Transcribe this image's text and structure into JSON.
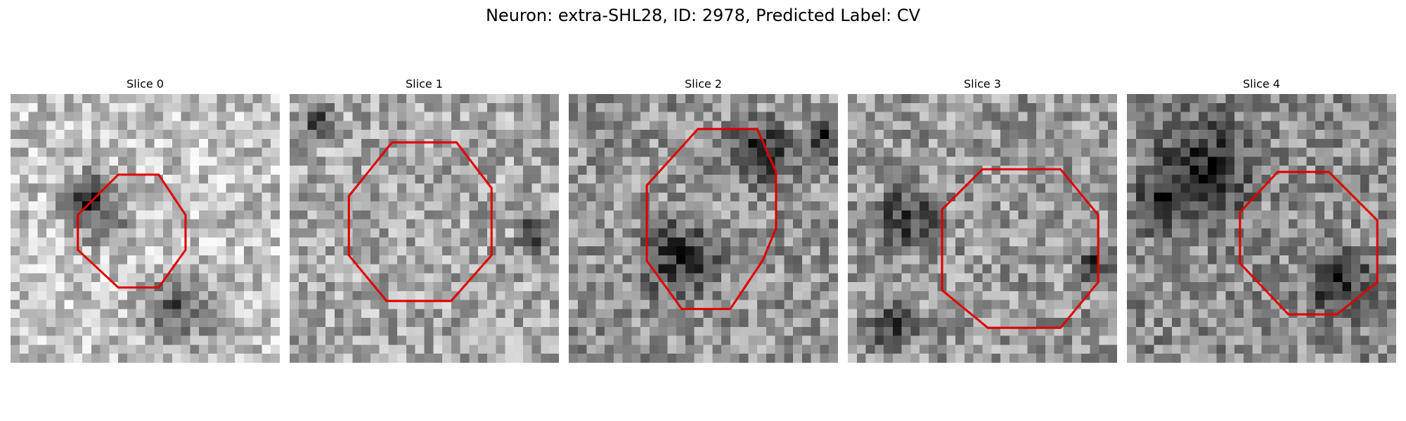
{
  "figure": {
    "title": "Neuron: extra-SHL28, ID: 2978, Predicted Label: CV"
  },
  "panels": [
    {
      "title": "Slice 0",
      "seed": 11,
      "brightness": 0.76,
      "dark_spots": [
        [
          30,
          40,
          5.5
        ],
        [
          60,
          78,
          6
        ],
        [
          24,
          37,
          3
        ]
      ],
      "outline": [
        [
          40,
          30
        ],
        [
          55,
          30
        ],
        [
          65,
          45
        ],
        [
          65,
          58
        ],
        [
          55,
          72
        ],
        [
          40,
          72
        ],
        [
          25,
          58
        ],
        [
          25,
          45
        ]
      ]
    },
    {
      "title": "Slice 1",
      "seed": 23,
      "brightness": 0.66,
      "dark_spots": [
        [
          10,
          10,
          3
        ],
        [
          90,
          50,
          3
        ]
      ],
      "outline": [
        [
          38,
          18
        ],
        [
          62,
          18
        ],
        [
          75,
          35
        ],
        [
          75,
          60
        ],
        [
          60,
          77
        ],
        [
          36,
          77
        ],
        [
          22,
          60
        ],
        [
          22,
          38
        ]
      ]
    },
    {
      "title": "Slice 2",
      "seed": 37,
      "brightness": 0.58,
      "dark_spots": [
        [
          40,
          60,
          6
        ],
        [
          95,
          15,
          4
        ],
        [
          70,
          20,
          5
        ]
      ],
      "outline": [
        [
          48,
          13
        ],
        [
          70,
          13
        ],
        [
          77,
          29
        ],
        [
          77,
          50
        ],
        [
          72,
          62
        ],
        [
          60,
          80
        ],
        [
          42,
          80
        ],
        [
          29,
          62
        ],
        [
          29,
          34
        ]
      ]
    },
    {
      "title": "Slice 3",
      "seed": 41,
      "brightness": 0.6,
      "dark_spots": [
        [
          20,
          45,
          5
        ],
        [
          90,
          62,
          3
        ],
        [
          15,
          85,
          4
        ]
      ],
      "outline": [
        [
          50,
          28
        ],
        [
          79,
          28
        ],
        [
          93,
          45
        ],
        [
          93,
          70
        ],
        [
          79,
          87
        ],
        [
          52,
          87
        ],
        [
          35,
          73
        ],
        [
          35,
          43
        ]
      ]
    },
    {
      "title": "Slice 4",
      "seed": 53,
      "brightness": 0.55,
      "dark_spots": [
        [
          28,
          25,
          8
        ],
        [
          78,
          70,
          5
        ],
        [
          10,
          40,
          4
        ]
      ],
      "outline": [
        [
          56,
          29
        ],
        [
          75,
          29
        ],
        [
          93,
          47
        ],
        [
          93,
          70
        ],
        [
          78,
          82
        ],
        [
          60,
          82
        ],
        [
          42,
          63
        ],
        [
          42,
          44
        ]
      ]
    }
  ],
  "colors": {
    "outline": "#e00000",
    "pixel_dark": "#000000",
    "pixel_light": "#ffffff"
  }
}
